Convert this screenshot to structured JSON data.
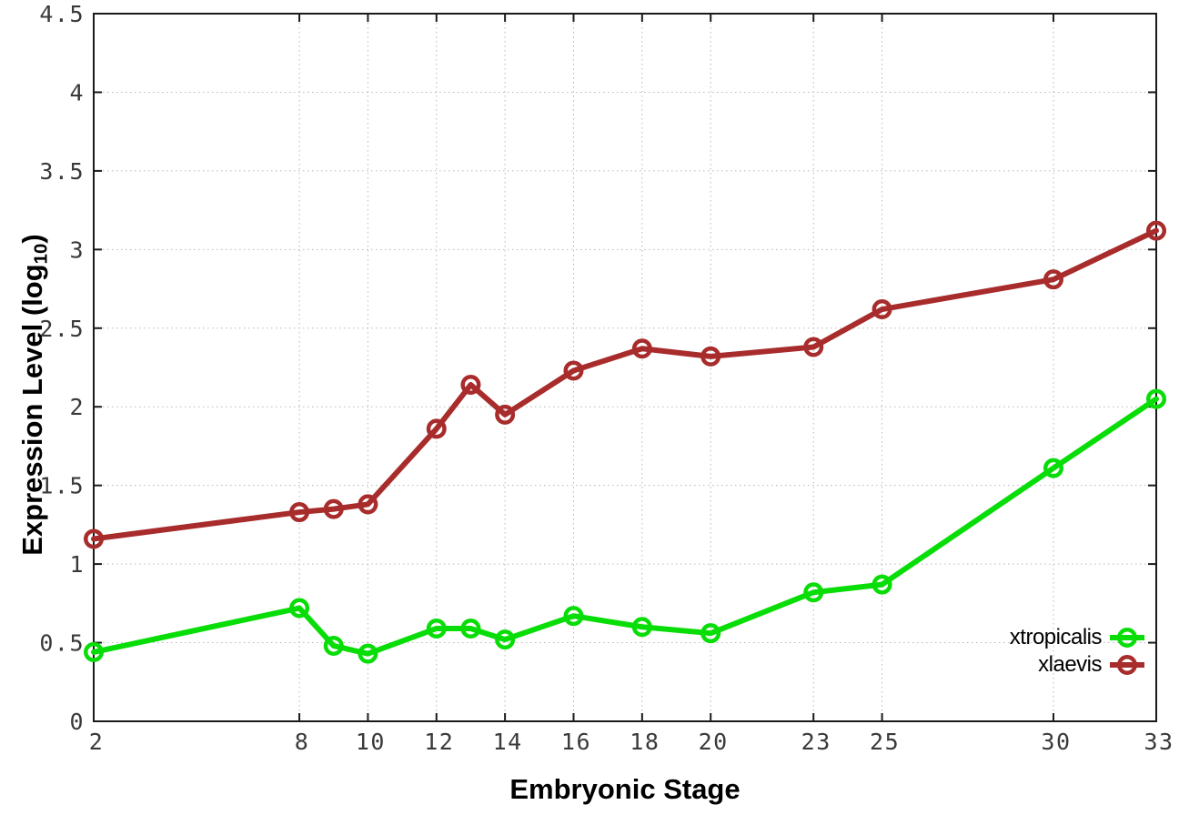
{
  "figure": {
    "background": "#ffffff",
    "axis_color": "#1a1a1a",
    "grid_color": "#b8b8b8",
    "tick_label_color": "#3a3a3a"
  },
  "chart_data": {
    "type": "line",
    "title": "",
    "xlabel": "Embryonic Stage",
    "ylabel": "Expression Level (log10)",
    "ylabel_rich": {
      "prefix": "Expression Level (log",
      "subscript": "10",
      "suffix": ")"
    },
    "xlim": [
      2,
      33
    ],
    "ylim": [
      0,
      4.5
    ],
    "x_ticks": [
      2,
      8,
      10,
      12,
      14,
      16,
      18,
      20,
      23,
      25,
      30,
      33
    ],
    "y_ticks": [
      0,
      0.5,
      1,
      1.5,
      2,
      2.5,
      3,
      3.5,
      4,
      4.5
    ],
    "grid": "dotted gridlines at labeled ticks, both axes",
    "legend_position": "inside bottom-right",
    "x": [
      2,
      8,
      9,
      10,
      12,
      13,
      14,
      16,
      18,
      20,
      23,
      25,
      30,
      33
    ],
    "series": [
      {
        "name": "xtropicalis",
        "color": "#08dd08",
        "marker": "open-circle",
        "values": [
          0.44,
          0.72,
          0.48,
          0.43,
          0.59,
          0.59,
          0.52,
          0.67,
          0.6,
          0.56,
          0.82,
          0.87,
          1.61,
          2.05
        ]
      },
      {
        "name": "xlaevis",
        "color": "#a82c2c",
        "marker": "open-circle",
        "values": [
          1.16,
          1.33,
          1.35,
          1.38,
          1.86,
          2.14,
          1.95,
          2.23,
          2.37,
          2.32,
          2.38,
          2.62,
          2.81,
          3.12
        ]
      }
    ]
  }
}
